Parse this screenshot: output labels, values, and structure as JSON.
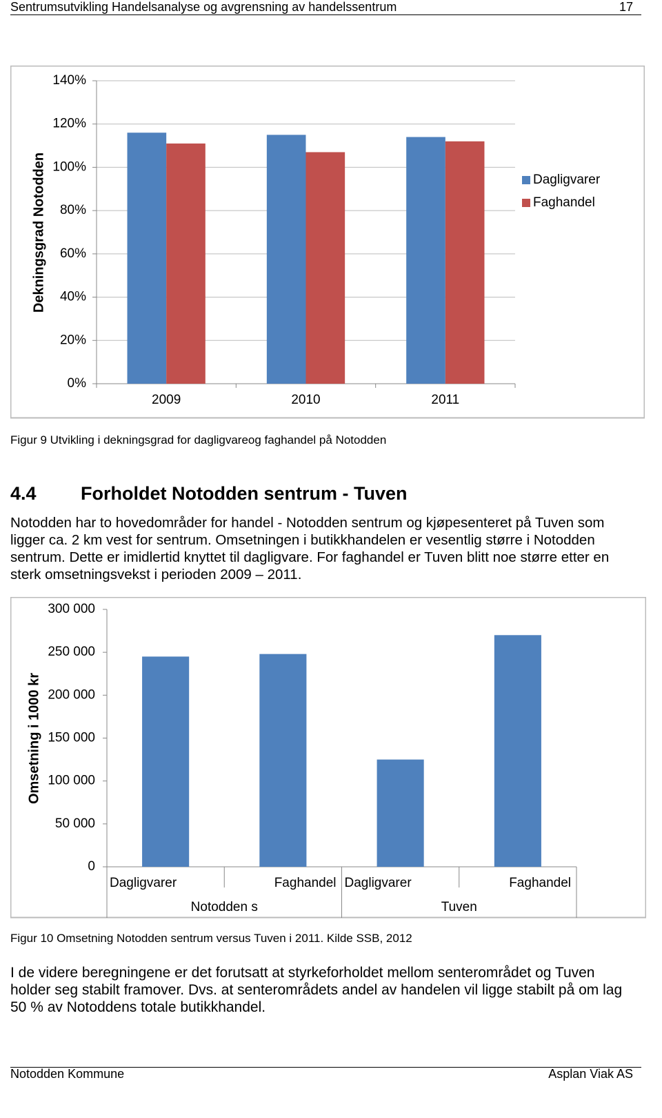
{
  "header": {
    "title": "Sentrumsutvikling Handelsanalyse og avgrensning av handelssentrum",
    "page": "17"
  },
  "chart_data": [
    {
      "type": "bar",
      "y_label": "Dekningsgrad Notodden",
      "categories": [
        "2009",
        "2010",
        "2011"
      ],
      "series": [
        {
          "name": "Dagligvarer",
          "color": "#4f81bd",
          "values": [
            116,
            115,
            114
          ]
        },
        {
          "name": "Faghandel",
          "color": "#c0504d",
          "values": [
            111,
            107,
            112
          ]
        }
      ],
      "ylim": [
        0,
        140
      ],
      "yticks": [
        {
          "value": 0,
          "label": "0%"
        },
        {
          "value": 20,
          "label": "20%"
        },
        {
          "value": 40,
          "label": "40%"
        },
        {
          "value": 60,
          "label": "60%"
        },
        {
          "value": 80,
          "label": "80%"
        },
        {
          "value": 100,
          "label": "100%"
        },
        {
          "value": 120,
          "label": "120%"
        },
        {
          "value": 140,
          "label": "140%"
        }
      ],
      "grid": true,
      "legend": "right"
    },
    {
      "type": "bar",
      "y_label": "Omsetning i 1000 kr",
      "categories": [
        "Dagligvarer",
        "Faghandel",
        "Dagligvarer",
        "Faghandel"
      ],
      "groups": [
        "Notodden s",
        "Tuven"
      ],
      "color": "#4f81bd",
      "values": [
        245000,
        248000,
        125000,
        270000
      ],
      "ylim": [
        0,
        300000
      ],
      "yticks": [
        0,
        {
          "value": 50000,
          "label": "50 000"
        },
        {
          "value": 100000,
          "label": "100 000"
        },
        {
          "value": 150000,
          "label": "150 000"
        },
        {
          "value": 200000,
          "label": "200 000"
        },
        {
          "value": 250000,
          "label": "250 000"
        },
        {
          "value": 300000,
          "label": "300 000"
        }
      ],
      "grid": false
    }
  ],
  "captions": [
    "Figur 9 Utvikling i dekningsgrad for dagligvareog faghandel på Notodden",
    "Figur 10 Omsetning Notodden sentrum versus Tuven i 2011. Kilde SSB, 2012"
  ],
  "section": {
    "number": "4.4",
    "title": "Forholdet Notodden sentrum - Tuven"
  },
  "paragraphs": [
    "Notodden har to hovedområder for handel - Notodden sentrum og kjøpesenteret på Tuven som ligger ca. 2 km vest for sentrum. Omsetningen i butikkhandelen er vesentlig større i Notodden sentrum. Dette er imidlertid knyttet til dagligvare. For faghandel er Tuven blitt noe større etter en sterk omsetningsvekst i perioden 2009 – 2011.",
    "I de videre beregningene er det forutsatt at styrkeforholdet mellom senterområdet og Tuven holder seg stabilt framover. Dvs. at senterområdets andel av handelen vil ligge stabilt på om lag 50 % av Notoddens totale butikkhandel."
  ],
  "footer": {
    "left": "Notodden Kommune",
    "right": "Asplan Viak AS"
  }
}
